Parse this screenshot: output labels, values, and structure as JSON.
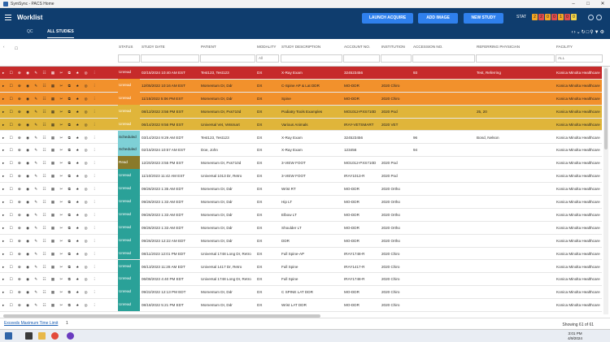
{
  "window": {
    "title": "SymSync - PACS Home"
  },
  "header": {
    "title": "Worklist",
    "buttons": [
      "LAUNCH ACQUIRE",
      "ADD IMAGE",
      "NEW STUDY"
    ],
    "stat_label": "STAT",
    "stat_counts": [
      {
        "n": "2",
        "color": "#f5a623"
      },
      {
        "n": "2",
        "color": "#e24b4b"
      },
      {
        "n": "0",
        "color": "#f5a623"
      },
      {
        "n": "0",
        "color": "#e24b4b"
      },
      {
        "n": "1",
        "color": "#f5a623"
      },
      {
        "n": "0",
        "color": "#e24b4b"
      },
      {
        "n": "0",
        "color": "#f5d547"
      }
    ]
  },
  "tabs": [
    {
      "label": "QC"
    },
    {
      "label": "ALL STUDIES"
    }
  ],
  "columns": [
    "STATUS",
    "STUDY DATE",
    "PATIENT",
    "MODALITY",
    "STUDY DESCRIPTION",
    "ACCOUNT NO.",
    "INSTITUTION",
    "ACCESSION NO.",
    "REFERRING PHYSICIAN",
    "FACILITY"
  ],
  "filters": {
    "modality": "All",
    "facility": "ALL"
  },
  "rows": [
    {
      "bg": "#c62a2a",
      "fg": "#fff",
      "status": "Unread",
      "status_bg": "#c62a2a",
      "date": "02/15/2024 10:40 AM EST",
      "patient": "Test123, Test123",
      "modality": "DX",
      "desc": "X-Ray Exam",
      "account": "324523456",
      "inst": "",
      "accession": "93",
      "ref": "Test, Referring",
      "fac": "Konica Minolta Healthcare"
    },
    {
      "bg": "#f2912c",
      "fg": "#222",
      "status": "Unread",
      "status_bg": "#f2912c",
      "date": "12/05/2022 10:16 AM EST",
      "patient": "Momentum Dr, Ddr",
      "modality": "DX",
      "desc": "C-Spine AP & Lat DDR",
      "account": "MO-DDR",
      "inst": "2020 Chiro",
      "accession": "",
      "ref": "",
      "fac": "Konica Minolta Healthcare"
    },
    {
      "bg": "#f2912c",
      "fg": "#222",
      "status": "Unread",
      "status_bg": "#f2912c",
      "date": "11/15/2022 5:06 PM EST",
      "patient": "Momentum Dr, Ddr",
      "modality": "DX",
      "desc": "Spine",
      "account": "MO-DDR",
      "inst": "2020 Chiro",
      "accession": "",
      "ref": "",
      "fac": "Konica Minolta Healthcare"
    },
    {
      "bg": "#e0b53a",
      "fg": "#222",
      "status": "Unread",
      "status_bg": "#e0b53a",
      "date": "08/12/2022 3:56 PM EST",
      "patient": "Momentum Dr, Pxs710d",
      "modality": "DX",
      "desc": "Podiatry Tools Examples",
      "account": "MO1012-PXS710D",
      "inst": "2020 Pod",
      "accession": "",
      "ref": "25, 20",
      "fac": "Konica Minolta Healthcare"
    },
    {
      "bg": "#e0b53a",
      "fg": "#222",
      "status": "Unread",
      "status_bg": "#e0b53a",
      "date": "06/14/2022 9:56 PM EST",
      "patient": "Universal Vet, Vetsmart",
      "modality": "DX",
      "desc": "Various Animals",
      "account": "IRAY-VETSMART",
      "inst": "2020 VET",
      "accession": "",
      "ref": "",
      "fac": "Konica Minolta Healthcare"
    },
    {
      "bg": "#ffffff",
      "fg": "#333",
      "status": "Scheduled",
      "status_bg": "#7ed0d6",
      "date": "03/14/2024 9:29 AM EDT",
      "patient": "Test123, Test123",
      "modality": "DX",
      "desc": "X-Ray Exam",
      "account": "324523456",
      "inst": "",
      "accession": "96",
      "ref": "Bond, Nelson",
      "fac": "Konica Minolta Healthcare"
    },
    {
      "bg": "#ffffff",
      "fg": "#333",
      "status": "Scheduled",
      "status_bg": "#7ed0d6",
      "date": "02/15/2024 10:57 AM EST",
      "patient": "Doe, John",
      "modality": "DX",
      "desc": "X-Ray Exam",
      "account": "123456",
      "inst": "",
      "accession": "94",
      "ref": "",
      "fac": "Konica Minolta Healthcare"
    },
    {
      "bg": "#ffffff",
      "fg": "#333",
      "status": "Read",
      "status_bg": "#8a7a2a",
      "date": "12/20/2023 3:55 PM EST",
      "patient": "Momentum Dr, Pxs710d",
      "modality": "DX",
      "desc": "3-VIEW FOOT",
      "account": "MO1012-PXS710D",
      "inst": "2020 Pod",
      "accession": "",
      "ref": "",
      "fac": "Konica Minolta Healthcare"
    },
    {
      "bg": "#ffffff",
      "fg": "#333",
      "status": "Unread",
      "status_bg": "#2aa198",
      "date": "11/10/2023 11:42 AM EST",
      "patient": "Universal 1013 Dr, Retro",
      "modality": "DX",
      "desc": "3-VIEW FOOT",
      "account": "IRAY1013-R",
      "inst": "2020 Pod",
      "accession": "",
      "ref": "",
      "fac": "Konica Minolta Healthcare"
    },
    {
      "bg": "#ffffff",
      "fg": "#333",
      "status": "Unread",
      "status_bg": "#2aa198",
      "date": "09/26/2023 1:35 AM EDT",
      "patient": "Momentum Dr, Ddr",
      "modality": "DX",
      "desc": "Wrist RT",
      "account": "MO-DDR",
      "inst": "2020 Ortho",
      "accession": "",
      "ref": "",
      "fac": "Konica Minolta Healthcare"
    },
    {
      "bg": "#ffffff",
      "fg": "#333",
      "status": "Unread",
      "status_bg": "#2aa198",
      "date": "09/26/2023 1:33 AM EDT",
      "patient": "Momentum Dr, Ddr",
      "modality": "DX",
      "desc": "Hip LT",
      "account": "MO-DDR",
      "inst": "2020 Ortho",
      "accession": "",
      "ref": "",
      "fac": "Konica Minolta Healthcare"
    },
    {
      "bg": "#ffffff",
      "fg": "#333",
      "status": "Unread",
      "status_bg": "#2aa198",
      "date": "09/26/2023 1:33 AM EDT",
      "patient": "Momentum Dr, Ddr",
      "modality": "DX",
      "desc": "Elbow LT",
      "account": "MO-DDR",
      "inst": "2020 Ortho",
      "accession": "",
      "ref": "",
      "fac": "Konica Minolta Healthcare"
    },
    {
      "bg": "#ffffff",
      "fg": "#333",
      "status": "Unread",
      "status_bg": "#2aa198",
      "date": "09/26/2023 1:33 AM EDT",
      "patient": "Momentum Dr, Ddr",
      "modality": "DX",
      "desc": "Shoulder LT",
      "account": "MO-DDR",
      "inst": "2020 Ortho",
      "accession": "",
      "ref": "",
      "fac": "Konica Minolta Healthcare"
    },
    {
      "bg": "#ffffff",
      "fg": "#333",
      "status": "Unread",
      "status_bg": "#2aa198",
      "date": "09/26/2023 12:22 AM EDT",
      "patient": "Momentum Dr, Ddr",
      "modality": "DX",
      "desc": "DDR",
      "account": "MO-DDR",
      "inst": "2020 Ortho",
      "accession": "",
      "ref": "",
      "fac": "Konica Minolta Healthcare"
    },
    {
      "bg": "#ffffff",
      "fg": "#333",
      "status": "Unread",
      "status_bg": "#2aa198",
      "date": "08/11/2023 12:01 PM EDT",
      "patient": "Universal 1748 Long Dr, Retro",
      "modality": "DX",
      "desc": "Full Spine-AP",
      "account": "IRAY1748-R",
      "inst": "2020 Chiro",
      "accession": "",
      "ref": "",
      "fac": "Konica Minolta Healthcare"
    },
    {
      "bg": "#ffffff",
      "fg": "#333",
      "status": "Unread",
      "status_bg": "#2aa198",
      "date": "06/13/2023 11:28 AM EDT",
      "patient": "Universal 1417 Dr, Retro",
      "modality": "DX",
      "desc": "Full Spine",
      "account": "IRAY1417-R",
      "inst": "2020 Chiro",
      "accession": "",
      "ref": "",
      "fac": "Konica Minolta Healthcare"
    },
    {
      "bg": "#ffffff",
      "fg": "#333",
      "status": "Unread",
      "status_bg": "#2aa198",
      "date": "06/08/2023 4:40 PM EDT",
      "patient": "Universal 1748 Long Dr, Retro",
      "modality": "DX",
      "desc": "Full Spine",
      "account": "IRAY1748-R",
      "inst": "2020 Chiro",
      "accession": "",
      "ref": "",
      "fac": "Konica Minolta Healthcare"
    },
    {
      "bg": "#ffffff",
      "fg": "#333",
      "status": "Unread",
      "status_bg": "#2aa198",
      "date": "09/22/2022 12:13 PM EDT",
      "patient": "Momentum Dr, Ddr",
      "modality": "DX",
      "desc": "C SPINE LAT DDR",
      "account": "MO-DDR",
      "inst": "2020 Chiro",
      "accession": "",
      "ref": "",
      "fac": "Konica Minolta Healthcare"
    },
    {
      "bg": "#ffffff",
      "fg": "#333",
      "status": "Unread",
      "status_bg": "#2aa198",
      "date": "08/18/2022 5:21 PM EDT",
      "patient": "Momentum Dr, Ddr",
      "modality": "DX",
      "desc": "Wrist LAT DDR",
      "account": "MO-DDR",
      "inst": "2020 Chiro",
      "accession": "",
      "ref": "",
      "fac": "Konica Minolta Healthcare"
    }
  ],
  "footer": {
    "exceeds_link": "Exceeds Maximum Time Limit",
    "exceeds_count": "1",
    "showing": "Showing 61 of 61"
  },
  "taskbar": {
    "time": "3:01 PM",
    "date": "4/9/2024"
  }
}
